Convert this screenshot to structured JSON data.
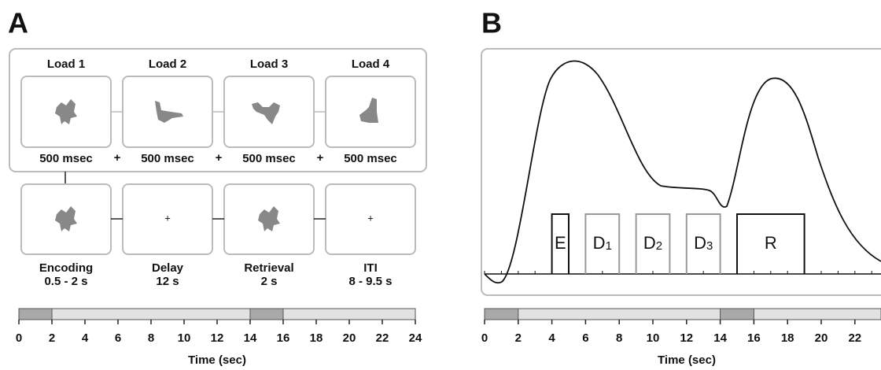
{
  "panel_a": {
    "label": "A",
    "loads": [
      {
        "title": "Load 1",
        "duration": "500 msec"
      },
      {
        "title": "Load 2",
        "duration": "500 msec"
      },
      {
        "title": "Load 3",
        "duration": "500 msec"
      },
      {
        "title": "Load 4",
        "duration": "500 msec"
      }
    ],
    "separators": [
      "+",
      "+",
      "+"
    ],
    "phases": [
      {
        "name": "Encoding",
        "duration": "0.5 - 2 s"
      },
      {
        "name": "Delay",
        "duration": "12 s",
        "fixation": "+"
      },
      {
        "name": "Retrieval",
        "duration": "2 s"
      },
      {
        "name": "ITI",
        "duration": "8 - 9.5 s",
        "fixation": "+"
      }
    ],
    "timeline": {
      "ticks": [
        0,
        2,
        4,
        6,
        8,
        10,
        12,
        14,
        16,
        18,
        20,
        22,
        24
      ],
      "axis_label": "Time (sec)"
    }
  },
  "panel_b": {
    "label": "B",
    "boxes": [
      {
        "text": "E"
      },
      {
        "base": "D",
        "sub": "1"
      },
      {
        "base": "D",
        "sub": "2"
      },
      {
        "base": "D",
        "sub": "3"
      },
      {
        "text": "R"
      }
    ],
    "timeline": {
      "ticks": [
        0,
        2,
        4,
        6,
        8,
        10,
        12,
        14,
        16,
        18,
        20,
        22
      ],
      "axis_label": "Time (sec)"
    }
  }
}
